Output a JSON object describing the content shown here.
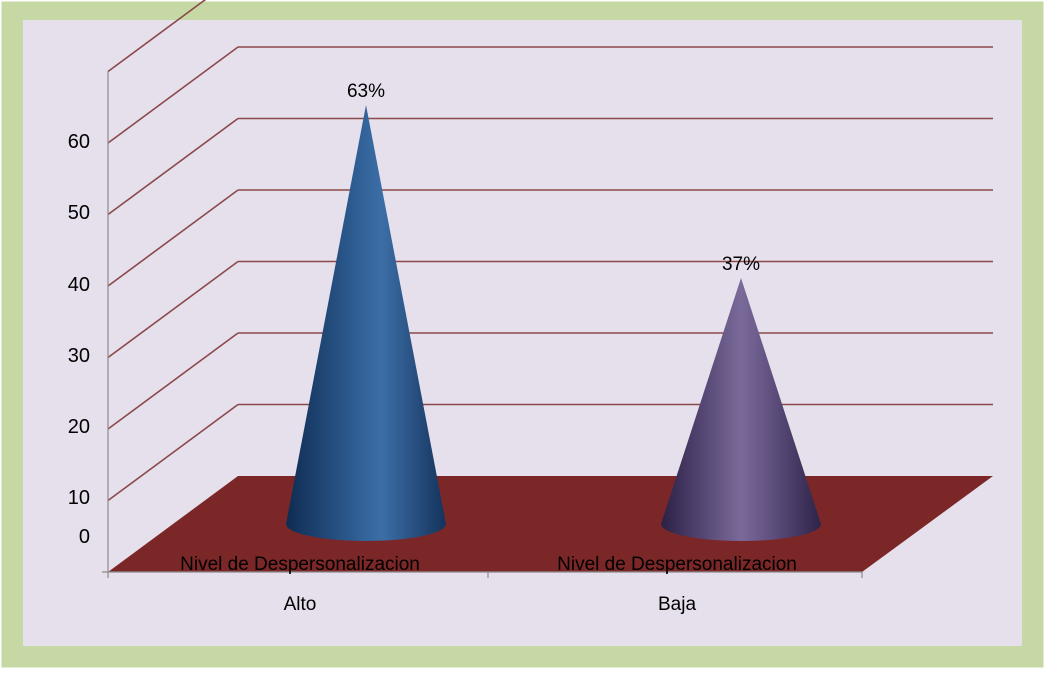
{
  "colors": {
    "frame_border": "#c6d9a5",
    "plot_background": "#e6dfec",
    "grid_line": "#8a4a4a",
    "floor": "#7b2727",
    "axis_line": "#8c8c8c",
    "series": [
      "#1f4a79",
      "#4e3f6e"
    ]
  },
  "chart_data": {
    "type": "bar",
    "style": "3d-cone",
    "categories": [
      {
        "line1": "Nivel de Despersonalizacion",
        "line2": "Alto"
      },
      {
        "line1": "Nivel de Despersonalizacion",
        "line2": "Baja"
      }
    ],
    "values": [
      63,
      37
    ],
    "data_labels": [
      "63%",
      "37%"
    ],
    "y_ticks": [
      0,
      10,
      20,
      30,
      40,
      50,
      60
    ],
    "ylim": [
      0,
      70
    ],
    "grid": true,
    "legend": "none",
    "title": "",
    "xlabel": "",
    "ylabel": ""
  }
}
